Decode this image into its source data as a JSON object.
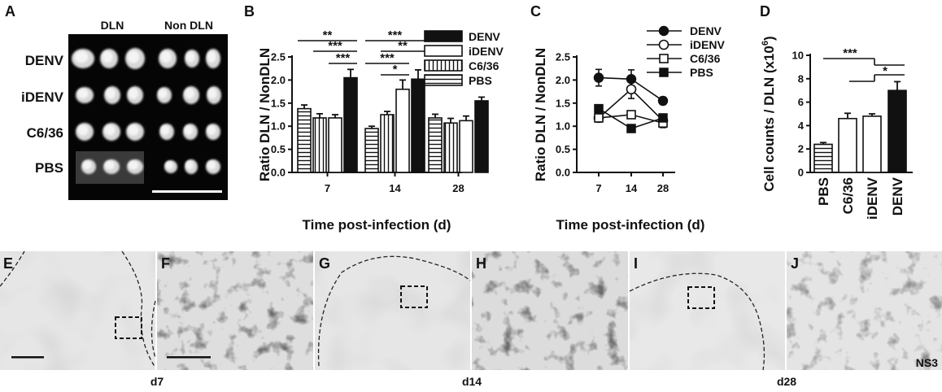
{
  "panel_labels": [
    "A",
    "B",
    "C",
    "D",
    "E",
    "F",
    "G",
    "H",
    "I",
    "J"
  ],
  "panel_a": {
    "column_labels": [
      "DLN",
      "Non DLN"
    ],
    "row_labels": [
      "DENV",
      "iDENV",
      "C6/36",
      "PBS"
    ]
  },
  "micrographs": {
    "time_labels": [
      "d7",
      "d14",
      "d28"
    ],
    "stain_label": "NS3"
  },
  "colors": {
    "axis": "#111111",
    "fill_dark": "#111111",
    "fill_light": "#ffffff",
    "tissue_bg": "#e8e8e8"
  },
  "chart_data": [
    {
      "panel": "B",
      "type": "bar",
      "xlabel": "Time post-infection (d)",
      "ylabel": "Ratio DLN / NonDLN",
      "ylim": [
        0,
        2.5
      ],
      "yticks": [
        "0.0",
        "0.5",
        "1.0",
        "1.5",
        "2.0",
        "2.5"
      ],
      "categories": [
        "7",
        "14",
        "28"
      ],
      "series": [
        {
          "name": "PBS",
          "pattern": "horizontal-stripes",
          "values": [
            1.38,
            0.95,
            1.18
          ],
          "errors": [
            0.08,
            0.05,
            0.08
          ]
        },
        {
          "name": "C6/36",
          "pattern": "vertical-stripes",
          "values": [
            1.18,
            1.25,
            1.07
          ],
          "errors": [
            0.09,
            0.07,
            0.1
          ]
        },
        {
          "name": "iDENV",
          "pattern": "open",
          "values": [
            1.18,
            1.8,
            1.12
          ],
          "errors": [
            0.07,
            0.2,
            0.1
          ]
        },
        {
          "name": "DENV",
          "pattern": "solid",
          "values": [
            2.05,
            2.02,
            1.55
          ],
          "errors": [
            0.18,
            0.2,
            0.08
          ]
        }
      ],
      "legend_order": [
        "DENV",
        "iDENV",
        "C6/36",
        "PBS"
      ],
      "significance": [
        {
          "group": "7",
          "between": [
            "PBS",
            "DENV"
          ],
          "label": "**"
        },
        {
          "group": "7",
          "between": [
            "C6/36",
            "DENV"
          ],
          "label": "***"
        },
        {
          "group": "7",
          "between": [
            "iDENV",
            "DENV"
          ],
          "label": "***"
        },
        {
          "group": "14",
          "between": [
            "PBS",
            "DENV"
          ],
          "label": "***"
        },
        {
          "group": "14",
          "between": [
            "C6/36",
            "DENV"
          ],
          "label": "**"
        },
        {
          "group": "14",
          "between": [
            "PBS",
            "iDENV"
          ],
          "label": "***"
        },
        {
          "group": "14",
          "between": [
            "C6/36",
            "iDENV"
          ],
          "label": "*"
        }
      ]
    },
    {
      "panel": "C",
      "type": "line",
      "xlabel": "Time post-infection (d)",
      "ylabel": "Ratio DLN / NonDLN",
      "ylim": [
        0,
        2.5
      ],
      "yticks": [
        "0.0",
        "0.5",
        "1.0",
        "1.5",
        "2.0",
        "2.5"
      ],
      "x": [
        "7",
        "14",
        "28"
      ],
      "series": [
        {
          "name": "DENV",
          "marker": "filled-circle",
          "values": [
            2.05,
            2.02,
            1.55
          ],
          "errors": [
            0.18,
            0.2,
            0.08
          ]
        },
        {
          "name": "iDENV",
          "marker": "open-circle",
          "values": [
            1.18,
            1.8,
            1.12
          ],
          "errors": [
            0.07,
            0.2,
            0.1
          ]
        },
        {
          "name": "C6/36",
          "marker": "open-square",
          "values": [
            1.18,
            1.25,
            1.07
          ],
          "errors": [
            0.09,
            0.07,
            0.1
          ]
        },
        {
          "name": "PBS",
          "marker": "filled-square",
          "values": [
            1.38,
            0.95,
            1.18
          ],
          "errors": [
            0.08,
            0.05,
            0.08
          ]
        }
      ]
    },
    {
      "panel": "D",
      "type": "bar",
      "ylabel": "Cell counts / DLN (x10",
      "ylabel_sup": "6",
      "ylabel_end": ")",
      "ylim": [
        0,
        10
      ],
      "yticks": [
        "0",
        "2",
        "4",
        "6",
        "8",
        "10"
      ],
      "categories": [
        "PBS",
        "C6/36",
        "iDENV",
        "DENV"
      ],
      "patterns": [
        "horizontal-stripes",
        "open",
        "open",
        "solid"
      ],
      "values": [
        2.4,
        4.6,
        4.8,
        7.0
      ],
      "errors": [
        0.15,
        0.45,
        0.2,
        0.75
      ],
      "significance": [
        {
          "between": [
            "PBS",
            "C6/36 / iDENV / DENV"
          ],
          "label": "***"
        },
        {
          "between": [
            "C6/36 / iDENV",
            "DENV"
          ],
          "label": "*"
        }
      ]
    }
  ]
}
